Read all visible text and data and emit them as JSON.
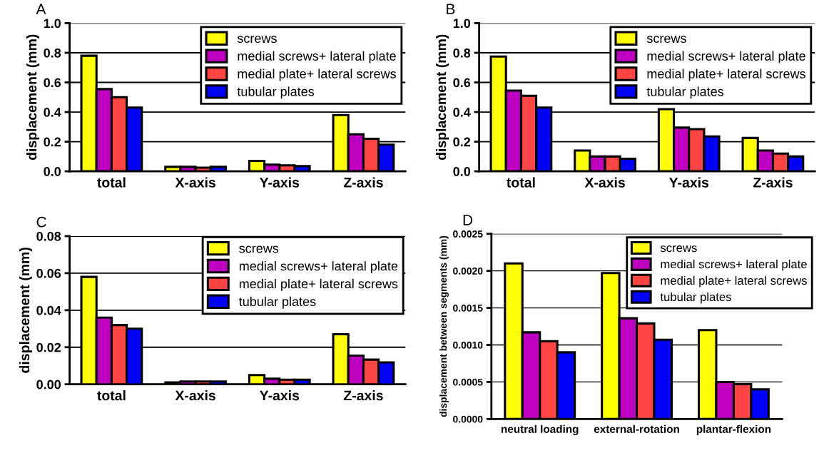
{
  "chart_data": [
    {
      "type": "bar",
      "title": "A",
      "ylabel": "displacement (mm)",
      "categories": [
        "total",
        "X-axis",
        "Y-axis",
        "Z-axis"
      ],
      "series": [
        {
          "name": "screws",
          "color": "#ffff00",
          "values": [
            0.78,
            0.03,
            0.07,
            0.38
          ]
        },
        {
          "name": "medial screws+ lateral plate",
          "color": "#c000c0",
          "values": [
            0.555,
            0.03,
            0.045,
            0.25
          ]
        },
        {
          "name": "medial plate+ lateral screws",
          "color": "#ff4444",
          "values": [
            0.5,
            0.025,
            0.04,
            0.22
          ]
        },
        {
          "name": "tubular plates",
          "color": "#0000ff",
          "values": [
            0.43,
            0.03,
            0.035,
            0.18
          ]
        }
      ],
      "ylim": [
        0,
        1.0
      ],
      "yticks": [
        {
          "value": 0,
          "label": "0.0"
        },
        {
          "value": 0.2,
          "label": "0.2"
        },
        {
          "value": 0.4,
          "label": "0.4"
        },
        {
          "value": 0.6,
          "label": "0.6"
        },
        {
          "value": 0.8,
          "label": "0.8"
        },
        {
          "value": 1.0,
          "label": "1.0"
        }
      ],
      "grid": "y",
      "legend": "top right"
    },
    {
      "type": "bar",
      "title": "B",
      "ylabel": "displacement (mm)",
      "categories": [
        "total",
        "X-axis",
        "Y-axis",
        "Z-axis"
      ],
      "series": [
        {
          "name": "screws",
          "color": "#ffff00",
          "values": [
            0.775,
            0.14,
            0.42,
            0.225
          ]
        },
        {
          "name": "medial screws+ lateral plate",
          "color": "#c000c0",
          "values": [
            0.545,
            0.1,
            0.295,
            0.14
          ]
        },
        {
          "name": "medial plate+ lateral screws",
          "color": "#ff4444",
          "values": [
            0.51,
            0.1,
            0.285,
            0.12
          ]
        },
        {
          "name": "tubular plates",
          "color": "#0000ff",
          "values": [
            0.43,
            0.085,
            0.235,
            0.1
          ]
        }
      ],
      "ylim": [
        0,
        1.0
      ],
      "yticks": [
        {
          "value": 0,
          "label": "0.0"
        },
        {
          "value": 0.2,
          "label": "0.2"
        },
        {
          "value": 0.4,
          "label": "0.4"
        },
        {
          "value": 0.6,
          "label": "0.6"
        },
        {
          "value": 0.8,
          "label": "0.8"
        },
        {
          "value": 1.0,
          "label": "1.0"
        }
      ],
      "grid": "y",
      "legend": "top right"
    },
    {
      "type": "bar",
      "title": "C",
      "ylabel": "displacement (mm)",
      "categories": [
        "total",
        "X-axis",
        "Y-axis",
        "Z-axis"
      ],
      "series": [
        {
          "name": "screws",
          "color": "#ffff00",
          "values": [
            0.058,
            0.001,
            0.005,
            0.027
          ]
        },
        {
          "name": "medial screws+ lateral plate",
          "color": "#c000c0",
          "values": [
            0.036,
            0.0015,
            0.003,
            0.0155
          ]
        },
        {
          "name": "medial plate+ lateral screws",
          "color": "#ff4444",
          "values": [
            0.032,
            0.0015,
            0.0025,
            0.0133
          ]
        },
        {
          "name": "tubular plates",
          "color": "#0000ff",
          "values": [
            0.03,
            0.0015,
            0.0025,
            0.0118
          ]
        }
      ],
      "ylim": [
        0,
        0.08
      ],
      "yticks": [
        {
          "value": 0,
          "label": "0.00"
        },
        {
          "value": 0.02,
          "label": "0.02"
        },
        {
          "value": 0.04,
          "label": "0.04"
        },
        {
          "value": 0.06,
          "label": "0.06"
        },
        {
          "value": 0.08,
          "label": "0.08"
        }
      ],
      "grid": "y",
      "legend": "top right"
    },
    {
      "type": "bar",
      "title": "D",
      "ylabel": "displacement between segments (mm)",
      "categories": [
        "neutral loading",
        "external-rotation",
        "plantar-flexion"
      ],
      "series": [
        {
          "name": "screws",
          "color": "#ffff00",
          "values": [
            0.0021,
            0.00197,
            0.0012
          ]
        },
        {
          "name": "medial screws+ lateral plate",
          "color": "#c000c0",
          "values": [
            0.00117,
            0.00136,
            0.0005
          ]
        },
        {
          "name": "medial plate+ lateral screws",
          "color": "#ff4444",
          "values": [
            0.00105,
            0.00129,
            0.00047
          ]
        },
        {
          "name": "tubular plates",
          "color": "#0000ff",
          "values": [
            0.0009,
            0.00107,
            0.0004
          ]
        }
      ],
      "ylim": [
        0,
        0.0025
      ],
      "yticks": [
        {
          "value": 0,
          "label": "0.0000"
        },
        {
          "value": 0.0005,
          "label": "0.0005"
        },
        {
          "value": 0.001,
          "label": "0.0010"
        },
        {
          "value": 0.0015,
          "label": "0.0015"
        },
        {
          "value": 0.002,
          "label": "0.0020"
        },
        {
          "value": 0.0025,
          "label": "0.0025"
        }
      ],
      "grid": "y",
      "legend": "top right"
    }
  ]
}
